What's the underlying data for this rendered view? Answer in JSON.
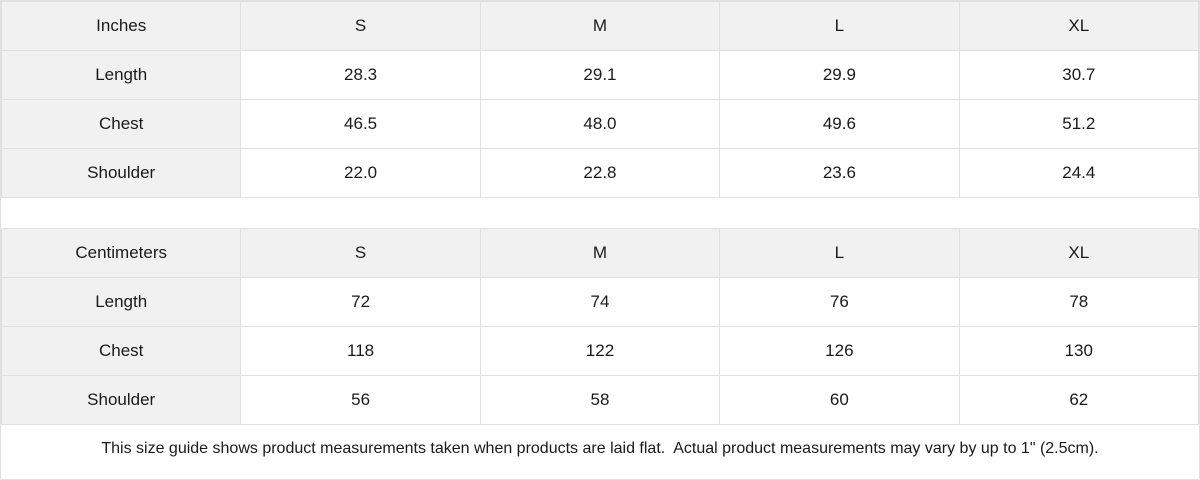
{
  "tables": [
    {
      "unit_label": "Inches",
      "sizes": [
        "S",
        "M",
        "L",
        "XL"
      ],
      "rows": [
        {
          "label": "Length",
          "values": [
            "28.3",
            "29.1",
            "29.9",
            "30.7"
          ]
        },
        {
          "label": "Chest",
          "values": [
            "46.5",
            "48.0",
            "49.6",
            "51.2"
          ]
        },
        {
          "label": "Shoulder",
          "values": [
            "22.0",
            "22.8",
            "23.6",
            "24.4"
          ]
        }
      ]
    },
    {
      "unit_label": "Centimeters",
      "sizes": [
        "S",
        "M",
        "L",
        "XL"
      ],
      "rows": [
        {
          "label": "Length",
          "values": [
            "72",
            "74",
            "76",
            "78"
          ]
        },
        {
          "label": "Chest",
          "values": [
            "118",
            "122",
            "126",
            "130"
          ]
        },
        {
          "label": "Shoulder",
          "values": [
            "56",
            "58",
            "60",
            "62"
          ]
        }
      ]
    }
  ],
  "footer": {
    "note": "This size guide shows product measurements taken when products are laid flat.  Actual product measurements may vary by up to 1\" (2.5cm)."
  },
  "colors": {
    "header_bg": "#f1f1f1",
    "border": "#e0e0e0",
    "text": "#1a1a1a",
    "cell_bg": "#ffffff"
  },
  "chart_data": [
    {
      "type": "table",
      "title": "Inches",
      "columns": [
        "Inches",
        "S",
        "M",
        "L",
        "XL"
      ],
      "rows": [
        [
          "Length",
          "28.3",
          "29.1",
          "29.9",
          "30.7"
        ],
        [
          "Chest",
          "46.5",
          "48.0",
          "49.6",
          "51.2"
        ],
        [
          "Shoulder",
          "22.0",
          "22.8",
          "23.6",
          "24.4"
        ]
      ]
    },
    {
      "type": "table",
      "title": "Centimeters",
      "columns": [
        "Centimeters",
        "S",
        "M",
        "L",
        "XL"
      ],
      "rows": [
        [
          "Length",
          "72",
          "74",
          "76",
          "78"
        ],
        [
          "Chest",
          "118",
          "122",
          "126",
          "130"
        ],
        [
          "Shoulder",
          "56",
          "58",
          "60",
          "62"
        ]
      ]
    }
  ]
}
